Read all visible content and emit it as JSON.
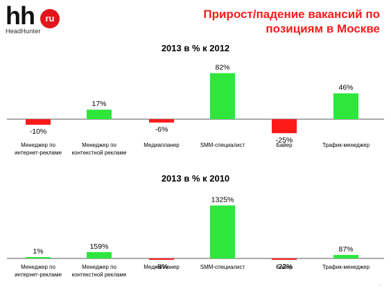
{
  "logo": {
    "mark": "hh",
    "badge": "ru",
    "sub": "HeadHunter"
  },
  "title": "Прирост/падение вакансий по позициям в Москве",
  "colors": {
    "positive": "#2ee63c",
    "negative": "#ff1a1a",
    "axis": "#555555",
    "title": "#ff1a1a"
  },
  "chart_data": [
    {
      "type": "bar",
      "title": "2013 в % к 2012",
      "categories": [
        "Менеджер по интернет-рекламе",
        "Менеджер по контекстной рекламе",
        "Медиапланер",
        "SMM-специалист",
        "Байер",
        "Трафик-менеджер"
      ],
      "series": [
        {
          "values": [
            -10,
            17,
            -6,
            82,
            -25,
            46
          ]
        }
      ],
      "data_labels": [
        "-10%",
        "17%",
        "-6%",
        "82%",
        "-25%",
        "46%"
      ],
      "grid": false
    },
    {
      "type": "bar",
      "title": "2013 в % к 2010",
      "categories": [
        "Менеджер по интернет-рекламе",
        "Менеджер по контекстной рекламе",
        "Медиапланер",
        "SMM-специалист",
        "Байер",
        "Трафик-менеджер"
      ],
      "series": [
        {
          "values": [
            1,
            159,
            -8,
            1325,
            -22,
            87
          ]
        }
      ],
      "data_labels": [
        "1%",
        "159%",
        "-8%",
        "1325%",
        "-22%",
        "87%"
      ],
      "grid": false
    }
  ],
  "category_lines": [
    [
      "Менеджер по",
      "интернет-рекламе"
    ],
    [
      "Менеджер по",
      "контекстной рекламе"
    ],
    [
      "Медиапланер"
    ],
    [
      "SMM-специалист"
    ],
    [
      "Байер"
    ],
    [
      "Трафик-менеджер"
    ]
  ]
}
